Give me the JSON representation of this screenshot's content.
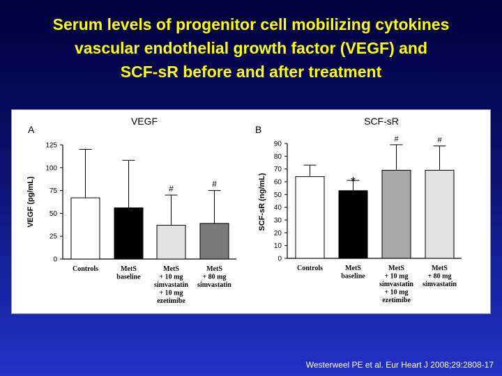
{
  "slide": {
    "title_lines": [
      "Serum levels of progenitor cell mobilizing cytokines",
      "vascular endothelial growth factor (VEGF) and",
      "SCF-sR before and after treatment"
    ],
    "citation": "Westerweel PE et al. Eur Heart J 2008;29:2808-17"
  },
  "colors": {
    "title": "#ffff00",
    "background_top": "#00003a",
    "background_bottom": "#2233c8",
    "bar_controls": "#ffffff",
    "bar_baseline": "#000000",
    "bar_ezetimibe_vegf": "#e2e2e2",
    "bar_80mg_vegf": "#7a7a7a",
    "bar_ezetimibe_scf": "#a8a8a8",
    "bar_80mg_scf": "#e2e2e2"
  },
  "chart_data": [
    {
      "type": "bar",
      "panel": "A",
      "title": "VEGF",
      "ylabel": "VEGF (pg/mL)",
      "xlabel": "",
      "ylim": [
        0,
        125
      ],
      "yticks": [
        0,
        25,
        50,
        75,
        100,
        125
      ],
      "grid": false,
      "categories": [
        [
          "Controls"
        ],
        [
          "MetS",
          "baseline"
        ],
        [
          "MetS",
          "+ 10 mg",
          "simvastatin",
          "+ 10 mg",
          "ezetimibe"
        ],
        [
          "MetS",
          "+ 80 mg",
          "simvastatin"
        ]
      ],
      "values": [
        67,
        56,
        37,
        39
      ],
      "error_upper": [
        120,
        108,
        70,
        75
      ],
      "fills": [
        "#ffffff",
        "#000000",
        "#e2e2e2",
        "#7a7a7a"
      ],
      "annotations": [
        "",
        "",
        "#",
        "#"
      ]
    },
    {
      "type": "bar",
      "panel": "B",
      "title": "SCF-sR",
      "ylabel": "SCF-sR (ng/mL)",
      "xlabel": "",
      "ylim": [
        0,
        90
      ],
      "yticks": [
        0,
        10,
        20,
        30,
        40,
        50,
        60,
        70,
        80,
        90
      ],
      "grid": false,
      "categories": [
        [
          "Controls"
        ],
        [
          "MetS",
          "baseline"
        ],
        [
          "MetS",
          "+ 10 mg",
          "simvastatin",
          "+ 10 mg",
          "ezetimibe"
        ],
        [
          "MetS",
          "+ 80 mg",
          "simvastatin"
        ]
      ],
      "values": [
        64,
        53,
        69,
        69
      ],
      "error_upper": [
        73,
        61,
        89,
        88
      ],
      "fills": [
        "#ffffff",
        "#000000",
        "#a8a8a8",
        "#e2e2e2"
      ],
      "annotations": [
        "",
        "*",
        "#",
        "#"
      ]
    }
  ]
}
